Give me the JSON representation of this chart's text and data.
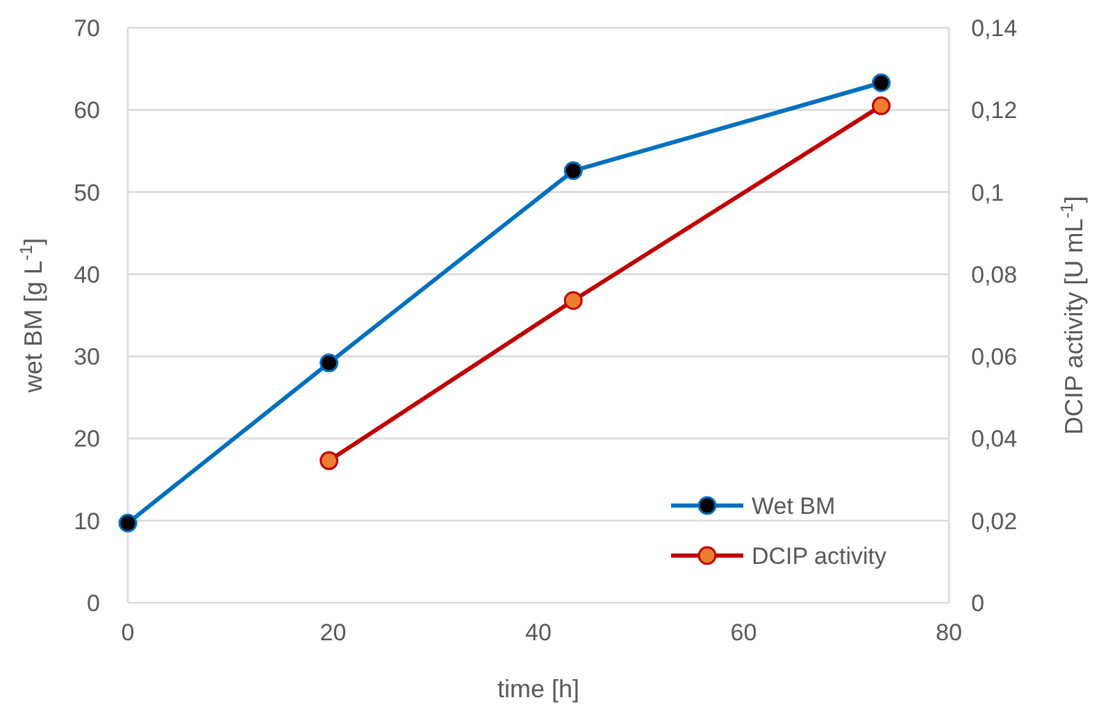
{
  "chart_data": {
    "type": "line",
    "xlabel": "time [h]",
    "ylabel": "wet BM [g L$^{-1}$]",
    "y2label": "DCIP activity [U mL$^{-1}$]",
    "xlim": [
      0,
      80
    ],
    "xticks": [
      0,
      20,
      40,
      60,
      80
    ],
    "ylim": [
      0,
      70
    ],
    "yticks": [
      0,
      10,
      20,
      30,
      40,
      50,
      60,
      70
    ],
    "y2lim": [
      0,
      0.14
    ],
    "y2ticks": [
      {
        "value": 0,
        "label": "0"
      },
      {
        "value": 0.02,
        "label": "0,02"
      },
      {
        "value": 0.04,
        "label": "0,04"
      },
      {
        "value": 0.06,
        "label": "0,06"
      },
      {
        "value": 0.08,
        "label": "0,08"
      },
      {
        "value": 0.1,
        "label": "0,1"
      },
      {
        "value": 0.12,
        "label": "0,12"
      },
      {
        "value": 0.14,
        "label": "0,14"
      }
    ],
    "grid": "y",
    "legend": "bottom right",
    "marker": "circle",
    "line_style": "solid",
    "series": [
      {
        "name": "Wet BM",
        "color": "#0070c0",
        "colors": [
          "#000000",
          "#000000",
          "#000000",
          "#000000"
        ],
        "x": [
          0,
          19.6,
          43.4,
          73.4
        ],
        "values": [
          9.7,
          29.2,
          52.6,
          63.3
        ]
      },
      {
        "name": "DCIP activity",
        "color": "#c00000",
        "colors": [
          "#ed7d31",
          "#ed7d31",
          "#ed7d31"
        ],
        "axis": "y2",
        "x": [
          19.6,
          43.4,
          73.4
        ],
        "values": [
          0.0346,
          0.0736,
          0.121
        ]
      }
    ]
  }
}
